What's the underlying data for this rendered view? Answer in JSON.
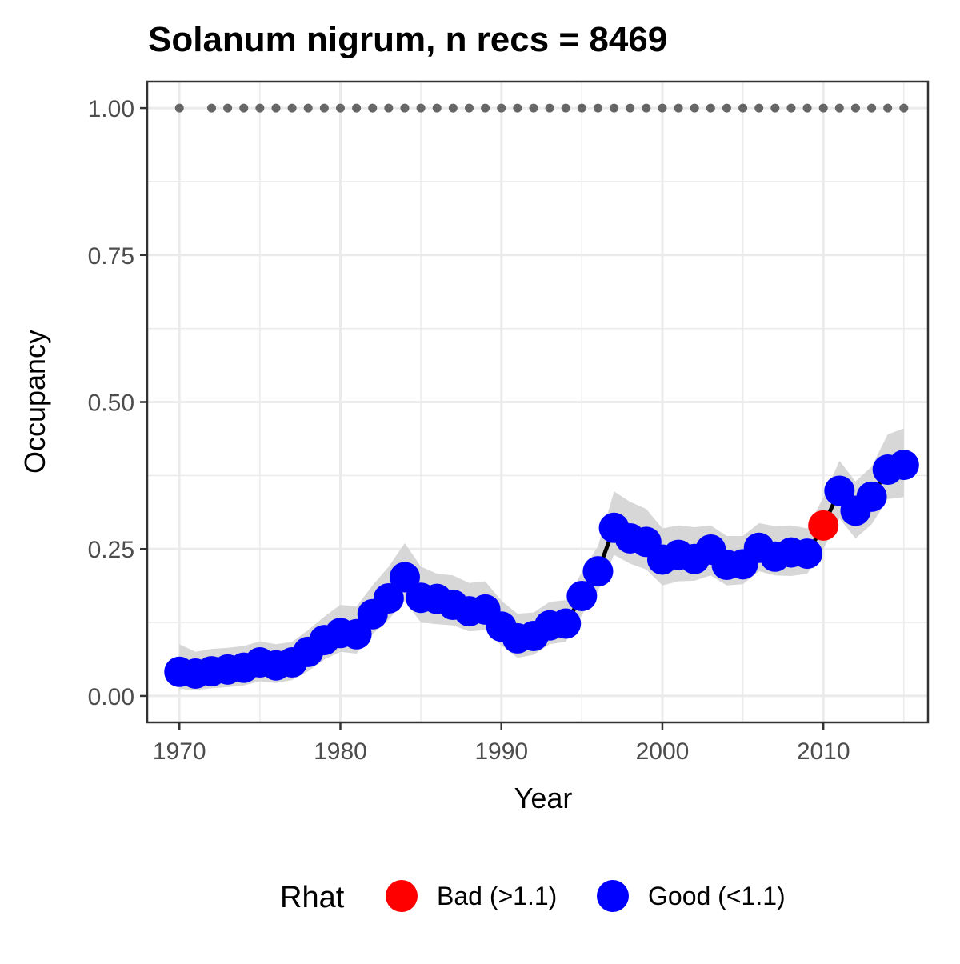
{
  "chart_data": {
    "type": "line",
    "title": "Solanum nigrum, n recs = 8469",
    "xlabel": "Year",
    "ylabel": "Occupancy",
    "xlim": [
      1968,
      2016.5
    ],
    "ylim": [
      -0.045,
      1.045
    ],
    "x_ticks": [
      1970,
      1980,
      1990,
      2000,
      2010
    ],
    "y_ticks": [
      0.0,
      0.25,
      0.5,
      0.75,
      1.0
    ],
    "y_tick_labels": [
      "0.00",
      "0.25",
      "0.50",
      "0.75",
      "1.00"
    ],
    "grid": true,
    "legend": {
      "title": "Rhat",
      "position": "bottom",
      "entries": [
        {
          "label": "Bad (>1.1)",
          "color": "#ff0000"
        },
        {
          "label": "Good (<1.1)",
          "color": "#0000ff"
        }
      ]
    },
    "colors": {
      "line": "#000000",
      "ribbon": "#d3d3d3",
      "good": "#0000ff",
      "bad": "#ff0000",
      "record_dots": "#666666",
      "grid": "#ebebeb",
      "panel_border": "#333333"
    },
    "series": [
      {
        "name": "Occupancy",
        "x": [
          1970,
          1971,
          1972,
          1973,
          1974,
          1975,
          1976,
          1977,
          1978,
          1979,
          1980,
          1981,
          1982,
          1983,
          1984,
          1985,
          1986,
          1987,
          1988,
          1989,
          1990,
          1991,
          1992,
          1993,
          1994,
          1995,
          1996,
          1997,
          1998,
          1999,
          2000,
          2001,
          2002,
          2003,
          2004,
          2005,
          2006,
          2007,
          2008,
          2009,
          2010,
          2011,
          2012,
          2013,
          2014,
          2015
        ],
        "y": [
          0.041,
          0.038,
          0.042,
          0.045,
          0.048,
          0.057,
          0.052,
          0.057,
          0.075,
          0.095,
          0.107,
          0.105,
          0.139,
          0.166,
          0.202,
          0.167,
          0.165,
          0.155,
          0.144,
          0.147,
          0.118,
          0.098,
          0.102,
          0.12,
          0.123,
          0.17,
          0.212,
          0.286,
          0.268,
          0.262,
          0.232,
          0.24,
          0.233,
          0.249,
          0.223,
          0.224,
          0.252,
          0.237,
          0.244,
          0.242,
          0.29,
          0.349,
          0.315,
          0.339,
          0.385,
          0.393
        ],
        "lower": [
          0.012,
          0.01,
          0.013,
          0.015,
          0.018,
          0.025,
          0.022,
          0.027,
          0.042,
          0.062,
          0.075,
          0.072,
          0.105,
          0.13,
          0.162,
          0.125,
          0.122,
          0.12,
          0.11,
          0.112,
          0.086,
          0.065,
          0.07,
          0.088,
          0.092,
          0.138,
          0.178,
          0.24,
          0.225,
          0.215,
          0.188,
          0.195,
          0.196,
          0.205,
          0.188,
          0.19,
          0.212,
          0.205,
          0.204,
          0.208,
          0.25,
          0.302,
          0.268,
          0.292,
          0.335,
          0.338
        ],
        "upper": [
          0.088,
          0.075,
          0.08,
          0.082,
          0.085,
          0.093,
          0.088,
          0.092,
          0.112,
          0.135,
          0.155,
          0.152,
          0.188,
          0.22,
          0.26,
          0.22,
          0.208,
          0.205,
          0.192,
          0.195,
          0.162,
          0.14,
          0.142,
          0.16,
          0.163,
          0.21,
          0.255,
          0.348,
          0.33,
          0.318,
          0.285,
          0.29,
          0.287,
          0.29,
          0.272,
          0.272,
          0.294,
          0.289,
          0.29,
          0.285,
          0.338,
          0.4,
          0.365,
          0.39,
          0.445,
          0.455
        ],
        "rhat": [
          "Good",
          "Good",
          "Good",
          "Good",
          "Good",
          "Good",
          "Good",
          "Good",
          "Good",
          "Good",
          "Good",
          "Good",
          "Good",
          "Good",
          "Good",
          "Good",
          "Good",
          "Good",
          "Good",
          "Good",
          "Good",
          "Good",
          "Good",
          "Good",
          "Good",
          "Good",
          "Good",
          "Good",
          "Good",
          "Good",
          "Good",
          "Good",
          "Good",
          "Good",
          "Good",
          "Good",
          "Good",
          "Good",
          "Good",
          "Good",
          "Bad",
          "Good",
          "Good",
          "Good",
          "Good",
          "Good"
        ]
      }
    ],
    "record_years": [
      1970,
      1972,
      1973,
      1974,
      1975,
      1976,
      1977,
      1978,
      1979,
      1980,
      1981,
      1982,
      1983,
      1984,
      1985,
      1986,
      1987,
      1988,
      1989,
      1990,
      1991,
      1992,
      1993,
      1994,
      1995,
      1996,
      1997,
      1998,
      1999,
      2000,
      2001,
      2002,
      2003,
      2004,
      2005,
      2006,
      2007,
      2008,
      2009,
      2010,
      2011,
      2012,
      2013,
      2014,
      2015
    ],
    "record_level": 1.0
  }
}
